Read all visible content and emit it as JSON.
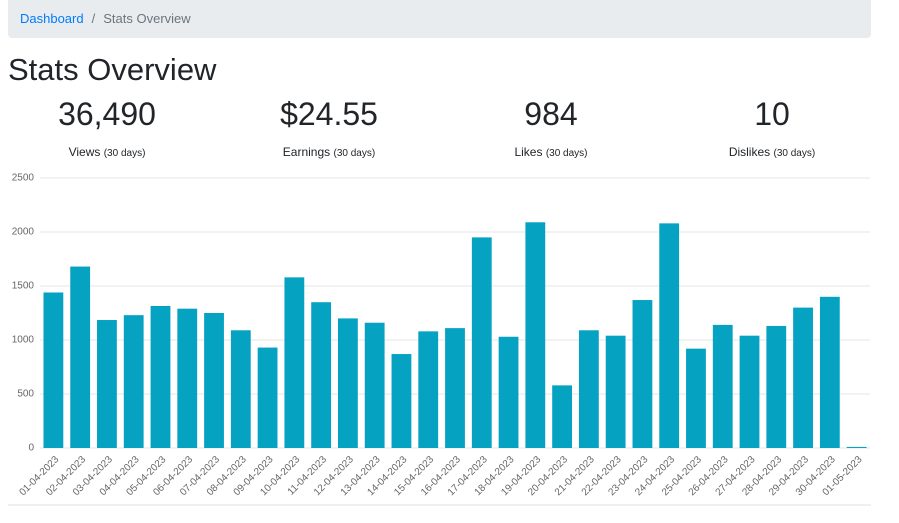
{
  "breadcrumb": {
    "items": [
      "Dashboard",
      "Stats Overview"
    ],
    "separator": "/"
  },
  "title": "Stats Overview",
  "stats": [
    {
      "value": "36,490",
      "label": "Views",
      "period": "(30 days)"
    },
    {
      "value": "$24.55",
      "label": "Earnings",
      "period": "(30 days)"
    },
    {
      "value": "984",
      "label": "Likes",
      "period": "(30 days)"
    },
    {
      "value": "10",
      "label": "Dislikes",
      "period": "(30 days)"
    }
  ],
  "chart_data": {
    "type": "bar",
    "color": "#06a2c2",
    "grid": true,
    "categories": [
      "01-04-2023",
      "02-04-2023",
      "03-04-2023",
      "04-04-2023",
      "05-04-2023",
      "06-04-2023",
      "07-04-2023",
      "08-04-2023",
      "09-04-2023",
      "10-04-2023",
      "11-04-2023",
      "12-04-2023",
      "13-04-2023",
      "14-04-2023",
      "15-04-2023",
      "16-04-2023",
      "17-04-2023",
      "18-04-2023",
      "19-04-2023",
      "20-04-2023",
      "21-04-2023",
      "22-04-2023",
      "23-04-2023",
      "24-04-2023",
      "25-04-2023",
      "26-04-2023",
      "27-04-2023",
      "28-04-2023",
      "29-04-2023",
      "30-04-2023",
      "01-05-2023"
    ],
    "values": [
      1440,
      1680,
      1185,
      1230,
      1315,
      1290,
      1250,
      1090,
      930,
      1580,
      1350,
      1200,
      1160,
      870,
      1080,
      1110,
      1950,
      1030,
      2090,
      580,
      1090,
      1040,
      1370,
      2080,
      920,
      1140,
      1040,
      1130,
      1300,
      1400,
      10
    ],
    "ylim": [
      0,
      2500
    ],
    "yticks": [
      0,
      500,
      1000,
      1500,
      2000,
      2500
    ]
  }
}
